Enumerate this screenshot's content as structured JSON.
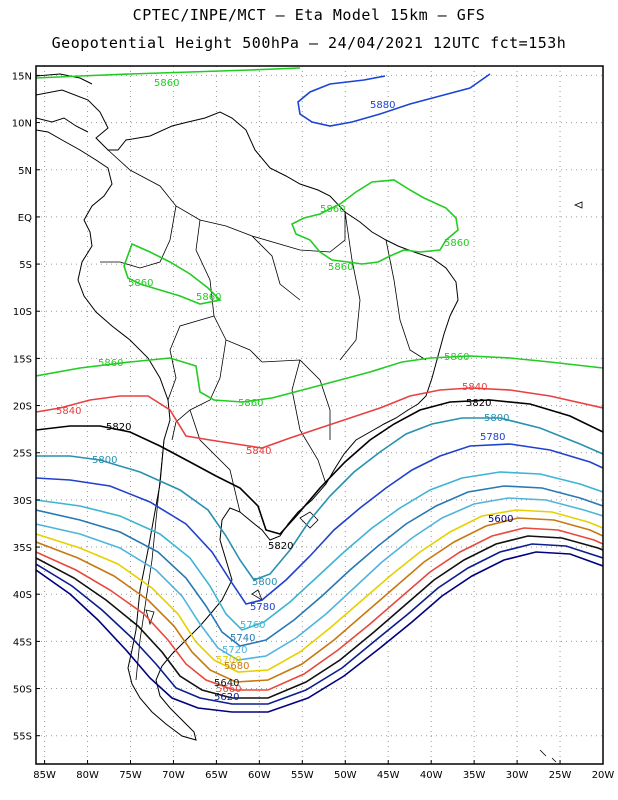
{
  "header": {
    "line1": "CPTEC/INPE/MCT –  Eta Model 15km – GFS",
    "line2": "Geopotential Height 500hPa – 24/04/2021 12UTC fct=153h"
  },
  "axes": {
    "lat_ticks": [
      "15N",
      "10N",
      "5N",
      "EQ",
      "5S",
      "10S",
      "15S",
      "20S",
      "25S",
      "30S",
      "35S",
      "40S",
      "45S",
      "50S",
      "55S"
    ],
    "lon_ticks": [
      "85W",
      "80W",
      "75W",
      "70W",
      "65W",
      "60W",
      "55W",
      "50W",
      "45W",
      "40W",
      "35W",
      "30W",
      "25W",
      "20W"
    ],
    "lat_range": [
      -58,
      16
    ],
    "lon_range": [
      -86,
      -20
    ],
    "grid": "dotted"
  },
  "colors": {
    "5600": "#000080",
    "5620": "#0a1e8c",
    "5640": "#111111",
    "5660": "#e74a3c",
    "5680": "#c87810",
    "5700": "#e6d000",
    "5720": "#50b4dc",
    "5740": "#2878b4",
    "5760": "#3cb4d2",
    "5780": "#2040d0",
    "5800": "#2890b0",
    "5820": "#000000",
    "5840": "#e84040",
    "5860": "#22cc22",
    "5880": "#1a44d8",
    "coast": "#000000",
    "borders": "#000000"
  },
  "contour_labels": [
    {
      "text": "5860",
      "color_key": "5860"
    },
    {
      "text": "5880",
      "color_key": "5880"
    },
    {
      "text": "5860",
      "color_key": "5860"
    },
    {
      "text": "5860",
      "color_key": "5860"
    },
    {
      "text": "5860",
      "color_key": "5860"
    },
    {
      "text": "5860",
      "color_key": "5860"
    },
    {
      "text": "5860",
      "color_key": "5860"
    },
    {
      "text": "5860",
      "color_key": "5860"
    },
    {
      "text": "5860",
      "color_key": "5860"
    },
    {
      "text": "5860",
      "color_key": "5860"
    },
    {
      "text": "5860",
      "color_key": "5860"
    },
    {
      "text": "5840",
      "color_key": "5840"
    },
    {
      "text": "5840",
      "color_key": "5840"
    },
    {
      "text": "5840",
      "color_key": "5840"
    },
    {
      "text": "5820",
      "color_key": "5820"
    },
    {
      "text": "5820",
      "color_key": "5820"
    },
    {
      "text": "5820",
      "color_key": "5820"
    },
    {
      "text": "5800",
      "color_key": "5800"
    },
    {
      "text": "5800",
      "color_key": "5800"
    },
    {
      "text": "5800",
      "color_key": "5800"
    },
    {
      "text": "5780",
      "color_key": "5780"
    },
    {
      "text": "5780",
      "color_key": "5780"
    },
    {
      "text": "5760",
      "color_key": "5760"
    },
    {
      "text": "5740",
      "color_key": "5740"
    },
    {
      "text": "5720",
      "color_key": "5720"
    },
    {
      "text": "5700",
      "color_key": "5700"
    },
    {
      "text": "5680",
      "color_key": "5680"
    },
    {
      "text": "5660",
      "color_key": "5660"
    },
    {
      "text": "5640",
      "color_key": "5640"
    },
    {
      "text": "5620",
      "color_key": "5620"
    },
    {
      "text": "5600",
      "color_key": "5600"
    },
    {
      "text": "5600",
      "color_key": "5600"
    }
  ]
}
